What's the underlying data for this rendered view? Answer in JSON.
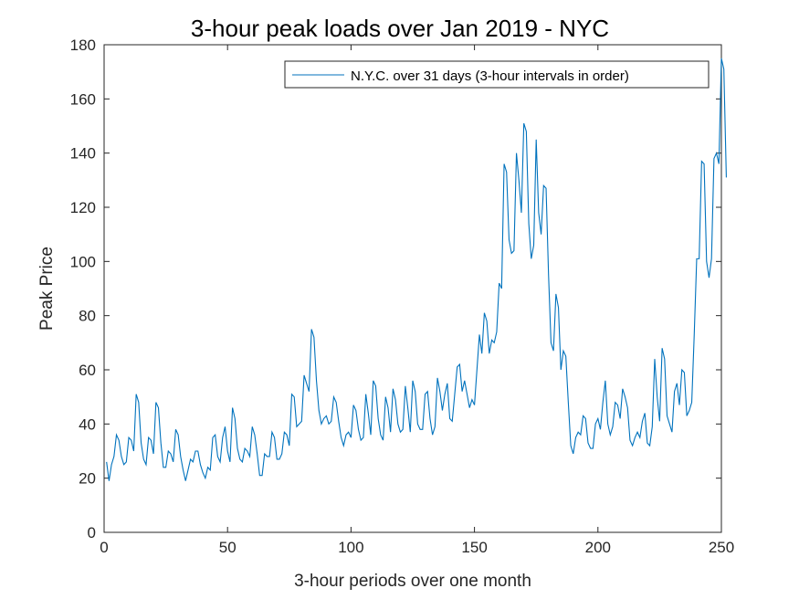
{
  "chart_data": {
    "type": "line",
    "title": "3-hour peak loads over Jan 2019 - NYC",
    "xlabel": "3-hour periods over one month",
    "ylabel": "Peak Price",
    "xlim": [
      0,
      250
    ],
    "ylim": [
      0,
      180
    ],
    "xticks": [
      0,
      50,
      100,
      150,
      200,
      250
    ],
    "yticks": [
      0,
      20,
      40,
      60,
      80,
      100,
      120,
      140,
      160,
      180
    ],
    "grid": false,
    "legend_position": "top-right",
    "series": [
      {
        "name": "N.Y.C. over 31 days (3-hour intervals in order)",
        "color": "#0072BD",
        "values": [
          26,
          19,
          25,
          28,
          36,
          34,
          28,
          25,
          26,
          35,
          34,
          30,
          51,
          48,
          33,
          27,
          25,
          35,
          34,
          29,
          48,
          46,
          33,
          24,
          24,
          30,
          29,
          26,
          38,
          36,
          28,
          23,
          19,
          23,
          27,
          26,
          30,
          30,
          25,
          22,
          20,
          24,
          23,
          35,
          36,
          28,
          26,
          35,
          39,
          30,
          26,
          46,
          42,
          31,
          27,
          26,
          31,
          30,
          28,
          39,
          36,
          29,
          21,
          21,
          29,
          28,
          28,
          37,
          35,
          27,
          27,
          29,
          37,
          36,
          32,
          51,
          50,
          39,
          40,
          41,
          58,
          55,
          52,
          75,
          72,
          56,
          45,
          40,
          42,
          43,
          40,
          41,
          50,
          48,
          41,
          35,
          32,
          36,
          37,
          35,
          47,
          45,
          38,
          34,
          35,
          51,
          44,
          36,
          56,
          54,
          42,
          36,
          34,
          50,
          46,
          37,
          53,
          49,
          40,
          37,
          38,
          54,
          46,
          37,
          56,
          52,
          40,
          38,
          38,
          51,
          52,
          42,
          36,
          39,
          57,
          52,
          45,
          51,
          55,
          42,
          41,
          51,
          61,
          62,
          52,
          56,
          51,
          46,
          49,
          47,
          60,
          73,
          66,
          81,
          78,
          66,
          71,
          70,
          74,
          92,
          90,
          136,
          133,
          108,
          103,
          104,
          140,
          130,
          118,
          151,
          148,
          114,
          101,
          106,
          145,
          118,
          110,
          128,
          127,
          95,
          70,
          67,
          88,
          83,
          60,
          67,
          65,
          48,
          32,
          29,
          35,
          37,
          36,
          43,
          42,
          33,
          31,
          31,
          40,
          42,
          38,
          48,
          56,
          40,
          36,
          39,
          48,
          47,
          42,
          53,
          50,
          46,
          34,
          32,
          35,
          37,
          35,
          41,
          44,
          33,
          32,
          39,
          64,
          50,
          41,
          68,
          64,
          43,
          40,
          37,
          52,
          55,
          47,
          60,
          59,
          43,
          45,
          48,
          73,
          101,
          101,
          137,
          136,
          100,
          94,
          101,
          138,
          140,
          136,
          175,
          171,
          131
        ]
      }
    ]
  }
}
